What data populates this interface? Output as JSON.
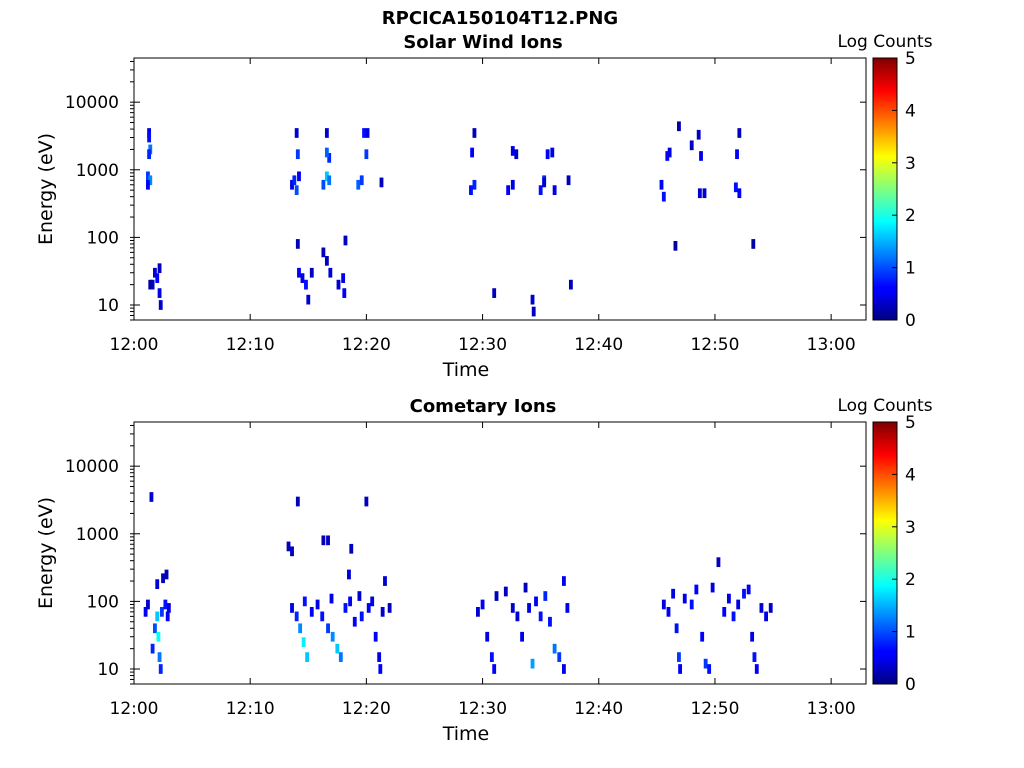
{
  "figure_title": "RPCICA150104T12.PNG",
  "chart_data": [
    {
      "type": "heatmap",
      "title": "Solar Wind Ions",
      "xlabel": "Time",
      "ylabel": "Energy (eV)",
      "x_unit": "minutes after 12:00",
      "xlim": [
        "12:00",
        "13:03"
      ],
      "ylim": [
        6,
        45000
      ],
      "yscale": "log",
      "x_ticks": [
        "12:00",
        "12:10",
        "12:20",
        "12:30",
        "12:40",
        "12:50",
        "13:00"
      ],
      "y_ticks": [
        "10",
        "100",
        "1000",
        "10000"
      ],
      "colorbar": {
        "label": "Log Counts",
        "range": [
          0,
          5
        ],
        "ticks": [
          "0",
          "1",
          "2",
          "3",
          "4",
          "5"
        ],
        "colormap": "jet"
      },
      "cells": [
        [
          1.3,
          3500,
          0.5
        ],
        [
          1.3,
          3000,
          0.7
        ],
        [
          1.4,
          2000,
          1.2
        ],
        [
          1.3,
          1700,
          0.8
        ],
        [
          1.2,
          800,
          0.9
        ],
        [
          1.4,
          700,
          1.3
        ],
        [
          1.2,
          600,
          0.6
        ],
        [
          1.6,
          20,
          0.3
        ],
        [
          1.8,
          30,
          0.4
        ],
        [
          2.0,
          25,
          0.6
        ],
        [
          2.2,
          15,
          0.5
        ],
        [
          2.2,
          35,
          0.3
        ],
        [
          2.3,
          10,
          0.4
        ],
        [
          1.4,
          20,
          0.2
        ],
        [
          13.6,
          600,
          0.5
        ],
        [
          13.8,
          700,
          0.8
        ],
        [
          14.0,
          500,
          1.0
        ],
        [
          14.2,
          800,
          0.6
        ],
        [
          14.0,
          3500,
          0.4
        ],
        [
          14.1,
          1700,
          0.9
        ],
        [
          14.1,
          80,
          0.3
        ],
        [
          14.2,
          30,
          0.6
        ],
        [
          14.5,
          25,
          0.5
        ],
        [
          14.8,
          20,
          0.7
        ],
        [
          15.0,
          12,
          0.4
        ],
        [
          15.3,
          30,
          0.3
        ],
        [
          16.3,
          600,
          1.0
        ],
        [
          16.6,
          800,
          1.6
        ],
        [
          16.8,
          700,
          1.2
        ],
        [
          16.6,
          3500,
          0.4
        ],
        [
          16.8,
          1500,
          0.8
        ],
        [
          16.6,
          1800,
          1.1
        ],
        [
          16.3,
          60,
          0.3
        ],
        [
          16.6,
          45,
          0.3
        ],
        [
          16.9,
          30,
          0.4
        ],
        [
          17.6,
          20,
          0.4
        ],
        [
          18.2,
          90,
          0.3
        ],
        [
          18.0,
          25,
          0.5
        ],
        [
          18.1,
          15,
          0.6
        ],
        [
          19.3,
          600,
          1.1
        ],
        [
          19.6,
          700,
          0.9
        ],
        [
          19.8,
          3500,
          0.7
        ],
        [
          20.1,
          3500,
          0.5
        ],
        [
          20.0,
          1700,
          0.9
        ],
        [
          21.3,
          650,
          0.3
        ],
        [
          29.3,
          3500,
          0.3
        ],
        [
          29.0,
          500,
          0.7
        ],
        [
          29.3,
          600,
          0.8
        ],
        [
          29.1,
          1800,
          0.6
        ],
        [
          32.2,
          500,
          0.6
        ],
        [
          32.6,
          600,
          0.5
        ],
        [
          32.6,
          1900,
          0.5
        ],
        [
          32.9,
          1700,
          0.4
        ],
        [
          35.0,
          500,
          0.7
        ],
        [
          35.3,
          700,
          0.8
        ],
        [
          35.6,
          1700,
          0.6
        ],
        [
          36.0,
          1800,
          0.5
        ],
        [
          36.2,
          500,
          0.5
        ],
        [
          35.3,
          650,
          0.4
        ],
        [
          37.4,
          700,
          0.3
        ],
        [
          31.0,
          15,
          0.3
        ],
        [
          34.3,
          12,
          0.4
        ],
        [
          34.4,
          8,
          0.3
        ],
        [
          37.6,
          20,
          0.3
        ],
        [
          45.4,
          600,
          0.6
        ],
        [
          45.6,
          400,
          0.7
        ],
        [
          45.9,
          1600,
          0.6
        ],
        [
          46.1,
          1800,
          0.5
        ],
        [
          46.6,
          75,
          0.2
        ],
        [
          46.9,
          4400,
          0.2
        ],
        [
          48.0,
          2300,
          0.3
        ],
        [
          48.7,
          450,
          0.4
        ],
        [
          48.8,
          1600,
          0.5
        ],
        [
          48.6,
          3300,
          0.3
        ],
        [
          49.1,
          450,
          0.4
        ],
        [
          51.8,
          550,
          0.7
        ],
        [
          52.1,
          450,
          0.6
        ],
        [
          51.9,
          1700,
          0.6
        ],
        [
          52.1,
          3500,
          0.3
        ],
        [
          53.3,
          80,
          0.2
        ]
      ]
    },
    {
      "type": "heatmap",
      "title": "Cometary Ions",
      "xlabel": "Time",
      "ylabel": "Energy (eV)",
      "x_unit": "minutes after 12:00",
      "xlim": [
        "12:00",
        "13:03"
      ],
      "ylim": [
        6,
        45000
      ],
      "yscale": "log",
      "x_ticks": [
        "12:00",
        "12:10",
        "12:20",
        "12:30",
        "12:40",
        "12:50",
        "13:00"
      ],
      "y_ticks": [
        "10",
        "100",
        "1000",
        "10000"
      ],
      "colorbar": {
        "label": "Log Counts",
        "range": [
          0,
          5
        ],
        "ticks": [
          "0",
          "1",
          "2",
          "3",
          "4",
          "5"
        ],
        "colormap": "jet"
      },
      "cells": [
        [
          1.5,
          3500,
          0.4
        ],
        [
          1.0,
          70,
          0.6
        ],
        [
          1.2,
          90,
          0.4
        ],
        [
          1.6,
          20,
          0.8
        ],
        [
          1.8,
          40,
          1.0
        ],
        [
          2.0,
          60,
          1.6
        ],
        [
          2.1,
          30,
          1.9
        ],
        [
          2.2,
          15,
          1.2
        ],
        [
          2.3,
          10,
          0.8
        ],
        [
          2.4,
          70,
          0.9
        ],
        [
          2.7,
          90,
          0.7
        ],
        [
          2.9,
          60,
          0.6
        ],
        [
          3.0,
          80,
          0.5
        ],
        [
          2.5,
          220,
          0.3
        ],
        [
          2.0,
          180,
          0.4
        ],
        [
          2.8,
          250,
          0.3
        ],
        [
          13.3,
          650,
          0.3
        ],
        [
          13.6,
          550,
          0.3
        ],
        [
          13.6,
          80,
          0.5
        ],
        [
          14.0,
          60,
          0.8
        ],
        [
          14.3,
          40,
          1.3
        ],
        [
          14.6,
          25,
          1.8
        ],
        [
          14.9,
          15,
          1.6
        ],
        [
          14.7,
          100,
          0.7
        ],
        [
          14.1,
          3000,
          0.3
        ],
        [
          15.3,
          70,
          0.6
        ],
        [
          15.8,
          90,
          0.5
        ],
        [
          16.2,
          60,
          0.7
        ],
        [
          16.7,
          40,
          0.9
        ],
        [
          17.1,
          30,
          1.3
        ],
        [
          17.5,
          20,
          1.6
        ],
        [
          17.8,
          15,
          1.2
        ],
        [
          17.0,
          110,
          0.5
        ],
        [
          16.3,
          800,
          0.3
        ],
        [
          16.7,
          800,
          0.3
        ],
        [
          18.2,
          80,
          0.7
        ],
        [
          18.6,
          100,
          0.6
        ],
        [
          18.5,
          250,
          0.4
        ],
        [
          18.7,
          600,
          0.3
        ],
        [
          19.0,
          50,
          0.6
        ],
        [
          19.4,
          120,
          0.4
        ],
        [
          19.6,
          60,
          0.7
        ],
        [
          20.0,
          3000,
          0.3
        ],
        [
          20.2,
          80,
          0.6
        ],
        [
          20.5,
          100,
          0.5
        ],
        [
          20.8,
          30,
          0.6
        ],
        [
          21.1,
          15,
          0.5
        ],
        [
          21.2,
          10,
          0.6
        ],
        [
          21.4,
          70,
          0.4
        ],
        [
          21.6,
          200,
          0.4
        ],
        [
          22.0,
          80,
          0.3
        ],
        [
          29.6,
          70,
          0.4
        ],
        [
          30.0,
          90,
          0.6
        ],
        [
          30.4,
          30,
          0.5
        ],
        [
          30.8,
          15,
          0.7
        ],
        [
          31.0,
          10,
          0.6
        ],
        [
          31.2,
          120,
          0.3
        ],
        [
          32.0,
          140,
          0.3
        ],
        [
          32.6,
          80,
          0.4
        ],
        [
          33.0,
          60,
          0.4
        ],
        [
          33.4,
          30,
          0.5
        ],
        [
          33.7,
          160,
          0.3
        ],
        [
          34.3,
          12,
          1.4
        ],
        [
          34.0,
          80,
          0.5
        ],
        [
          34.6,
          100,
          0.6
        ],
        [
          35.0,
          60,
          0.7
        ],
        [
          35.4,
          120,
          0.8
        ],
        [
          35.8,
          50,
          0.7
        ],
        [
          36.2,
          20,
          1.2
        ],
        [
          36.6,
          15,
          0.9
        ],
        [
          37.0,
          200,
          0.6
        ],
        [
          37.3,
          80,
          0.5
        ],
        [
          37.0,
          10,
          0.5
        ],
        [
          45.6,
          90,
          0.5
        ],
        [
          46.0,
          70,
          0.6
        ],
        [
          46.4,
          130,
          0.5
        ],
        [
          46.7,
          40,
          0.7
        ],
        [
          46.9,
          15,
          0.9
        ],
        [
          47.0,
          10,
          0.6
        ],
        [
          47.4,
          110,
          0.5
        ],
        [
          48.0,
          90,
          0.7
        ],
        [
          48.4,
          150,
          0.6
        ],
        [
          48.9,
          30,
          0.6
        ],
        [
          49.2,
          12,
          0.9
        ],
        [
          49.5,
          10,
          0.7
        ],
        [
          49.8,
          160,
          0.5
        ],
        [
          50.3,
          380,
          0.3
        ],
        [
          50.8,
          70,
          0.6
        ],
        [
          51.2,
          110,
          0.5
        ],
        [
          51.6,
          60,
          0.7
        ],
        [
          52.0,
          90,
          0.5
        ],
        [
          52.5,
          130,
          0.7
        ],
        [
          52.9,
          150,
          0.6
        ],
        [
          53.2,
          30,
          0.5
        ],
        [
          53.4,
          15,
          0.7
        ],
        [
          53.6,
          10,
          0.6
        ],
        [
          54.0,
          80,
          0.4
        ],
        [
          54.4,
          60,
          0.5
        ],
        [
          54.8,
          80,
          0.4
        ]
      ]
    }
  ]
}
